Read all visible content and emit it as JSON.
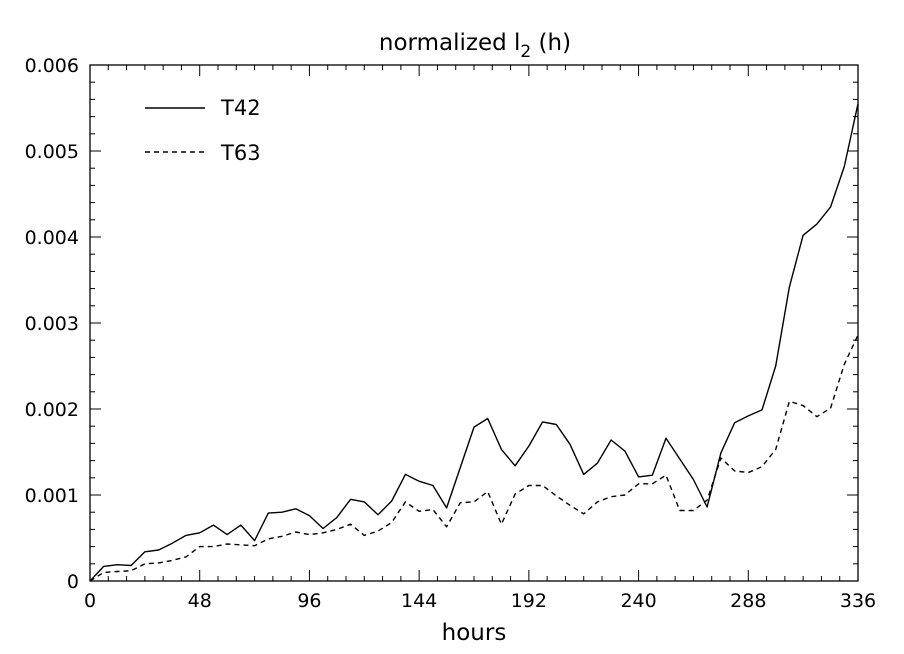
{
  "chart_data": {
    "type": "line",
    "title": "normalized l",
    "title_subscript": "2",
    "title_suffix": " (h)",
    "xlabel": "hours",
    "ylabel": "",
    "xlim": [
      0,
      336
    ],
    "ylim": [
      0,
      0.006
    ],
    "xticks": [
      0,
      48,
      96,
      144,
      192,
      240,
      288,
      336
    ],
    "yticks": [
      0,
      0.001,
      0.002,
      0.003,
      0.004,
      0.005,
      0.006
    ],
    "yticklabels": [
      "0",
      "0.001",
      "0.002",
      "0.003",
      "0.004",
      "0.005",
      "0.006"
    ],
    "legend_position": "top-left",
    "series": [
      {
        "name": "T42",
        "style": "solid",
        "x": [
          0,
          6,
          12,
          18,
          24,
          30,
          36,
          42,
          48,
          54,
          60,
          66,
          72,
          78,
          84,
          90,
          96,
          102,
          108,
          114,
          120,
          126,
          132,
          138,
          144,
          150,
          156,
          162,
          168,
          174,
          180,
          186,
          192,
          198,
          204,
          210,
          216,
          222,
          228,
          234,
          240,
          246,
          252,
          258,
          264,
          270,
          276,
          282,
          288,
          294,
          300,
          306,
          312,
          318,
          324,
          330,
          336
        ],
        "y": [
          0,
          0.00017,
          0.00019,
          0.00018,
          0.00034,
          0.00036,
          0.00044,
          0.00053,
          0.00056,
          0.00065,
          0.00054,
          0.00065,
          0.00047,
          0.00079,
          0.0008,
          0.00084,
          0.00076,
          0.00061,
          0.00074,
          0.00095,
          0.00092,
          0.00077,
          0.00093,
          0.00124,
          0.00116,
          0.00111,
          0.00085,
          0.00132,
          0.00179,
          0.00189,
          0.00153,
          0.00134,
          0.00157,
          0.00185,
          0.00182,
          0.00159,
          0.00124,
          0.00137,
          0.00164,
          0.00151,
          0.00121,
          0.00123,
          0.00166,
          0.00142,
          0.00118,
          0.00086,
          0.00149,
          0.00184,
          0.00192,
          0.00199,
          0.0025,
          0.00342,
          0.00402,
          0.00415,
          0.00435,
          0.00482,
          0.00555
        ]
      },
      {
        "name": "T63",
        "style": "dashed",
        "x": [
          0,
          6,
          12,
          18,
          24,
          30,
          36,
          42,
          48,
          54,
          60,
          66,
          72,
          78,
          84,
          90,
          96,
          102,
          108,
          114,
          120,
          126,
          132,
          138,
          144,
          150,
          156,
          162,
          168,
          174,
          180,
          186,
          192,
          198,
          204,
          210,
          216,
          222,
          228,
          234,
          240,
          246,
          252,
          258,
          264,
          270,
          276,
          282,
          288,
          294,
          300,
          306,
          312,
          318,
          324,
          330,
          336
        ],
        "y": [
          0,
          0.0001,
          0.00011,
          0.00012,
          0.0002,
          0.00021,
          0.00024,
          0.00028,
          0.0004,
          0.0004,
          0.00043,
          0.00042,
          0.00041,
          0.00049,
          0.00052,
          0.00057,
          0.00054,
          0.00056,
          0.0006,
          0.00066,
          0.00053,
          0.00058,
          0.00068,
          0.00092,
          0.00081,
          0.00083,
          0.00063,
          0.00091,
          0.00092,
          0.00104,
          0.00066,
          0.00101,
          0.00111,
          0.00111,
          0.00099,
          0.00088,
          0.00078,
          0.00092,
          0.00098,
          0.001,
          0.00113,
          0.00113,
          0.00123,
          0.00082,
          0.00082,
          0.00094,
          0.00143,
          0.00128,
          0.00126,
          0.00133,
          0.00153,
          0.00209,
          0.00204,
          0.00191,
          0.00201,
          0.00252,
          0.00286
        ]
      }
    ]
  }
}
